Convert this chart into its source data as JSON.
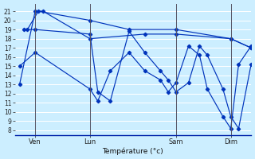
{
  "background_color": "#cceeff",
  "grid_color": "#ffffff",
  "line_color": "#0033bb",
  "xlabel": "Température (°c)",
  "ylim": [
    7.5,
    21.8
  ],
  "yticks": [
    8,
    9,
    10,
    11,
    12,
    13,
    14,
    15,
    16,
    17,
    18,
    19,
    20,
    21
  ],
  "xlim": [
    -0.3,
    14.8
  ],
  "vline_positions": [
    1.0,
    4.5,
    10.0,
    13.5
  ],
  "xtick_positions": [
    1.0,
    4.5,
    10.0,
    13.5
  ],
  "xtick_labels": [
    "Ven",
    "Lun",
    "Sam",
    "Dim"
  ],
  "series": [
    {
      "x": [
        0.0,
        1.0,
        1.5,
        4.5,
        8.0,
        10.0,
        13.5,
        14.8
      ],
      "y": [
        13,
        21,
        21,
        18,
        18.5,
        18.5,
        18,
        17
      ]
    },
    {
      "x": [
        0.5,
        1.2,
        4.5,
        7.0,
        10.0,
        13.5,
        14.8
      ],
      "y": [
        19,
        21,
        20,
        19,
        19,
        18,
        17
      ]
    },
    {
      "x": [
        0.0,
        1.0,
        4.5,
        5.0,
        5.8,
        7.0,
        8.0,
        9.0,
        9.5,
        10.0,
        10.8,
        11.5,
        12.0,
        13.0,
        13.5,
        14.0,
        14.8
      ],
      "y": [
        15,
        16.5,
        12.5,
        11.2,
        14.5,
        16.5,
        14.5,
        13.5,
        12.2,
        13.2,
        17.2,
        16.2,
        12.5,
        9.5,
        8.2,
        15.2,
        17.2
      ]
    },
    {
      "x": [
        0.3,
        1.0,
        4.5,
        5.0,
        5.8,
        7.0,
        8.0,
        9.0,
        9.5,
        10.0,
        10.8,
        11.5,
        12.0,
        13.0,
        13.5,
        14.0,
        14.8
      ],
      "y": [
        19,
        19,
        18.5,
        12.2,
        11.2,
        18.8,
        16.5,
        14.5,
        13.5,
        12.2,
        13.2,
        17.2,
        16.2,
        12.5,
        9.5,
        8.2,
        15.2
      ]
    }
  ]
}
